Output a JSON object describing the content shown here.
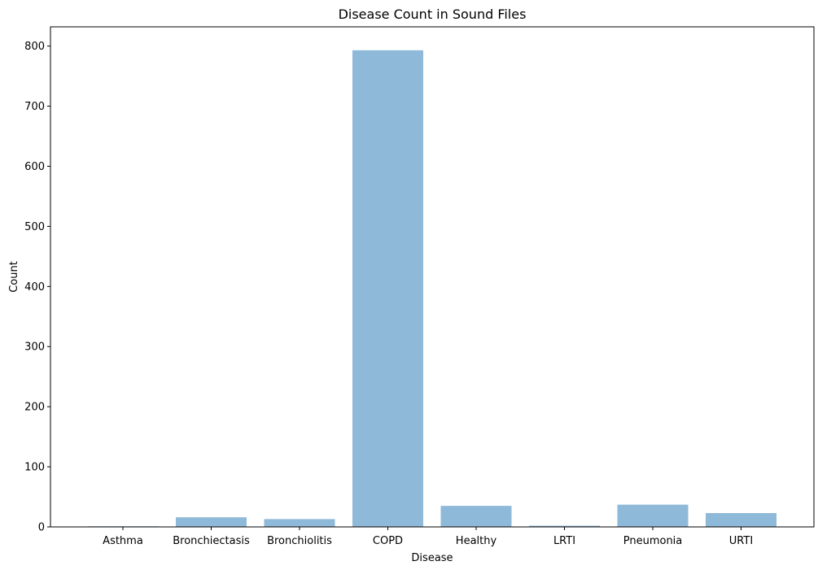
{
  "chart_data": {
    "type": "bar",
    "title": "Disease Count in Sound Files",
    "xlabel": "Disease",
    "ylabel": "Count",
    "categories": [
      "Asthma",
      "Bronchiectasis",
      "Bronchiolitis",
      "COPD",
      "Healthy",
      "LRTI",
      "Pneumonia",
      "URTI"
    ],
    "values": [
      1,
      16,
      13,
      793,
      35,
      2,
      37,
      23
    ],
    "ylim": [
      0,
      832
    ],
    "yticks": [
      0,
      100,
      200,
      300,
      400,
      500,
      600,
      700,
      800
    ],
    "bar_color": "#8fb9d9",
    "grid": false,
    "legend": "none"
  }
}
